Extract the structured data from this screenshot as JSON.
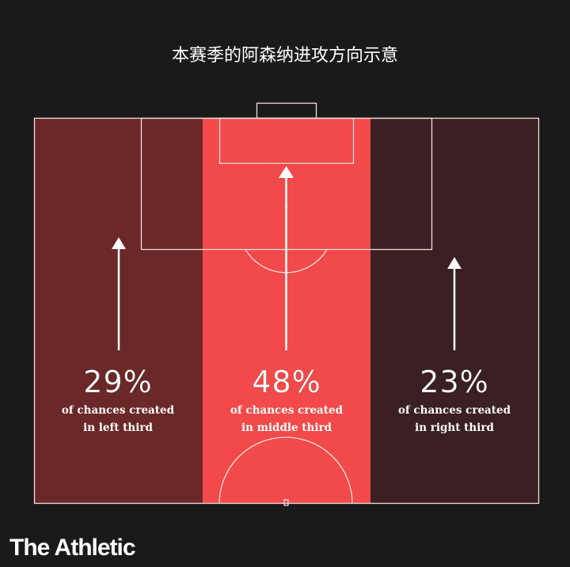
{
  "title": "本赛季的阿森纳进攻方向示意",
  "colors": {
    "background": "#1a1a1a",
    "left_third": "#6b2829",
    "middle_third": "#f24a4a",
    "right_third": "#3a2022",
    "lines": "#f2dcd8"
  },
  "thirds": [
    {
      "percent": "29%",
      "line1": "of chances created",
      "line2": "in left third"
    },
    {
      "percent": "48%",
      "line1": "of chances created",
      "line2": "in middle third"
    },
    {
      "percent": "23%",
      "line1": "of chances created",
      "line2": "in right third"
    }
  ],
  "logo": "The Athletic"
}
